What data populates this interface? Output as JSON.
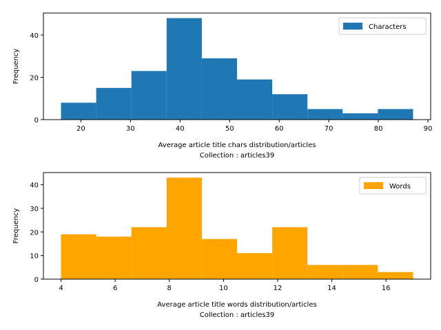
{
  "chart_data": [
    {
      "type": "bar",
      "xlabel": "Average article title chars distribution/articles",
      "xlabel2": "Collection : articles39",
      "ylabel": "Frequency",
      "xlim": [
        12.45,
        90.55
      ],
      "ylim": [
        0,
        50.4
      ],
      "xticks": [
        "20",
        "30",
        "40",
        "50",
        "60",
        "70",
        "80",
        "90"
      ],
      "yticks": [
        "0",
        "20",
        "40"
      ],
      "bin_edges": [
        16,
        23.1,
        30.2,
        37.3,
        44.4,
        51.5,
        58.6,
        65.7,
        72.8,
        79.9,
        87
      ],
      "values": [
        8,
        15,
        23,
        48,
        29,
        19,
        12,
        5,
        3,
        5
      ],
      "color": "#1f77b4",
      "series": [
        {
          "name": "Characters",
          "values": [
            8,
            15,
            23,
            48,
            29,
            19,
            12,
            5,
            3,
            5
          ]
        }
      ],
      "legend": "top-right",
      "grid": false
    },
    {
      "type": "bar",
      "xlabel": "Average article title words distribution/articles",
      "xlabel2": "Collection : articles39",
      "ylabel": "Frequency",
      "xlim": [
        3.35,
        17.65
      ],
      "ylim": [
        0,
        45.15
      ],
      "xticks": [
        "4",
        "6",
        "8",
        "10",
        "12",
        "14",
        "16"
      ],
      "yticks": [
        "0",
        "10",
        "20",
        "30",
        "40"
      ],
      "bin_edges": [
        4,
        5.3,
        6.6,
        7.9,
        9.2,
        10.5,
        11.8,
        13.1,
        14.4,
        15.7,
        17
      ],
      "values": [
        19,
        18,
        22,
        43,
        17,
        11,
        22,
        6,
        6,
        3
      ],
      "color": "#ffa500",
      "series": [
        {
          "name": "Words",
          "values": [
            19,
            18,
            22,
            43,
            17,
            11,
            22,
            6,
            6,
            3
          ]
        }
      ],
      "legend": "top-right",
      "grid": false
    }
  ]
}
